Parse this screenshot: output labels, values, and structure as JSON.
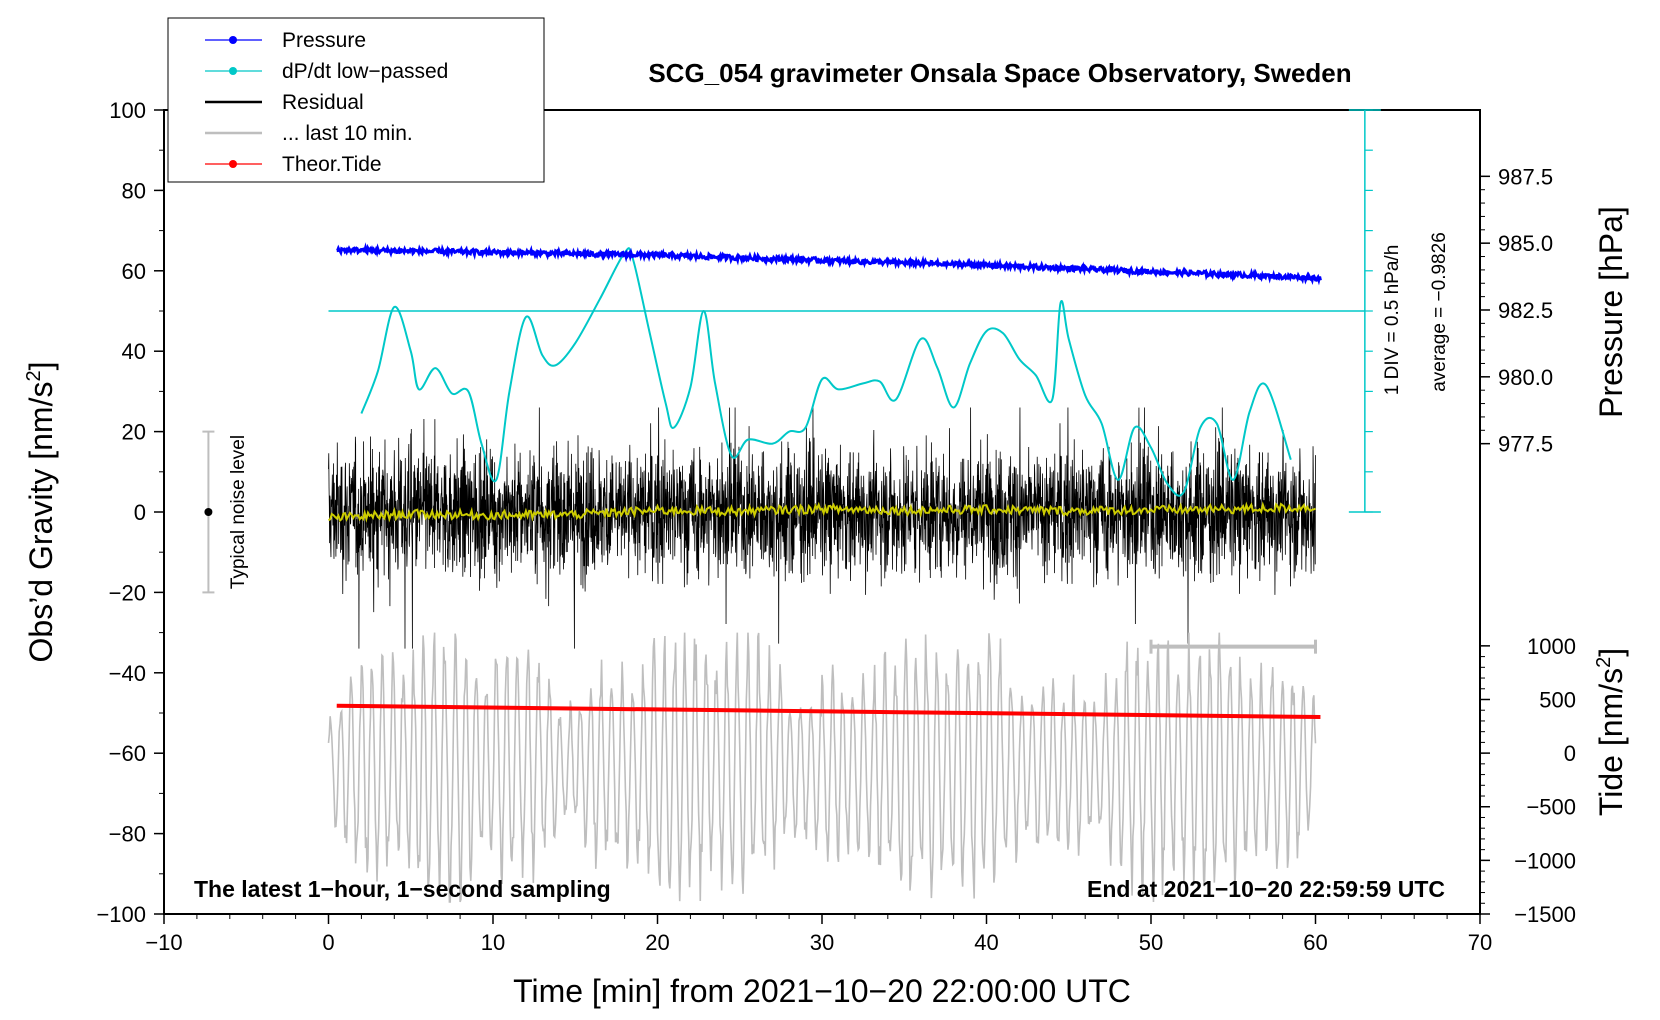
{
  "chart_data": {
    "type": "line",
    "title": "SCG_054 gravimeter Onsala Space Observatory, Sweden",
    "xlabel": "Time [min] from 2021−10−20 22:00:00 UTC",
    "ylabel": "Obs’d Gravity [nm/s²]",
    "ylabel_parts": {
      "base": "Obs’d Gravity [nm/s",
      "sup": "2",
      "end": "]"
    },
    "y2label": "Pressure [hPa]",
    "y3label_parts": {
      "base": "Tide [nm/s",
      "sup": "2",
      "end": "]"
    },
    "xlim": [
      -10,
      70
    ],
    "ylim": [
      -100,
      100
    ],
    "x_ticks": [
      -10,
      0,
      10,
      20,
      30,
      40,
      50,
      60,
      70
    ],
    "x_tick_labels": [
      "−10",
      "0",
      "10",
      "20",
      "30",
      "40",
      "50",
      "60",
      "70"
    ],
    "y_ticks": [
      -100,
      -80,
      -60,
      -40,
      -20,
      0,
      20,
      40,
      60,
      80,
      100
    ],
    "y_tick_labels": [
      "−100",
      "−80",
      "−60",
      "−40",
      "−20",
      "0",
      "20",
      "40",
      "60",
      "80",
      "100"
    ],
    "pressure_ticks": [
      977.5,
      980.0,
      982.5,
      985.0,
      987.5
    ],
    "pressure_tick_labels": [
      "977.5",
      "980.0",
      "982.5",
      "985.0",
      "987.5"
    ],
    "pressure_axis_map": {
      "value_a": 977.5,
      "y_a": 17,
      "value_b": 987.5,
      "y_b": 83.5
    },
    "tide_ticks": [
      -1500,
      -1000,
      -500,
      0,
      500,
      1000
    ],
    "tide_tick_labels": [
      "−1500",
      "−1000",
      "−500",
      "0",
      "500",
      "1000"
    ],
    "tide_axis_map": {
      "value_a": -1500,
      "y_a": -100,
      "value_b": 1000,
      "y_b": -33.3
    },
    "legend": [
      {
        "label": "Pressure",
        "color": "#0000ff",
        "marker": true
      },
      {
        "label": "dP/dt low−passed",
        "color": "#00c8c8",
        "marker": true
      },
      {
        "label": "Residual",
        "color": "#000000",
        "marker": false
      },
      {
        "label": "... last 10 min.",
        "color": "#bebebe",
        "marker": false
      },
      {
        "label": "Theor.Tide",
        "color": "#ff0000",
        "marker": true
      }
    ],
    "series": [
      {
        "name": "Pressure",
        "color": "#0000ff",
        "x": [
          0.5,
          10,
          20,
          30,
          40,
          50,
          60.3
        ],
        "y": [
          65.2,
          64.6,
          63.9,
          62.6,
          61.4,
          59.8,
          58.2
        ]
      },
      {
        "name": "dP/dt low−passed",
        "color": "#00c8c8",
        "x": [
          2,
          3,
          4,
          5,
          5.5,
          6.5,
          7.5,
          8.5,
          9.3,
          10.2,
          11,
          12,
          13,
          13.8,
          15,
          16.5,
          18,
          18.5,
          19.5,
          20.5,
          21,
          22,
          22.8,
          23.5,
          24.5,
          25.5,
          27,
          28,
          29,
          30,
          31,
          32.5,
          33.5,
          34.5,
          36,
          37,
          38,
          39,
          40,
          41,
          42,
          43,
          44,
          44.5,
          45,
          46,
          47,
          48,
          49,
          50,
          51,
          52,
          53,
          54,
          55,
          56,
          57,
          58.5
        ],
        "y": [
          24.5,
          35,
          51,
          40,
          30.5,
          35.8,
          29.5,
          30,
          17,
          8,
          30,
          48.5,
          39,
          36.5,
          42,
          53,
          64.5,
          63,
          45,
          27,
          21,
          31,
          50,
          32,
          14,
          18,
          17,
          20,
          21,
          33,
          30.5,
          32,
          32.5,
          28,
          43,
          36,
          26,
          37,
          45,
          44.5,
          38,
          34,
          28,
          52,
          43,
          29,
          22,
          8,
          21,
          16,
          7,
          5,
          21,
          22,
          8,
          25,
          31.5,
          13
        ]
      },
      {
        "name": "Residual",
        "color": "#000000",
        "amplitude": 27
      },
      {
        "name": "Residual smoothed",
        "color": "#cccc00",
        "x": [
          0,
          5,
          10,
          15,
          20,
          25,
          30,
          35,
          40,
          45,
          50,
          55,
          60
        ],
        "y": [
          -1.5,
          -0.5,
          -0.8,
          -0.6,
          0.4,
          0.2,
          0.8,
          0.4,
          0.6,
          0.3,
          0.5,
          0.7,
          1.2
        ]
      },
      {
        "name": "... last 10 min.",
        "color": "#bebebe",
        "amplitude": 30
      },
      {
        "name": "Theor.Tide",
        "color": "#ff0000",
        "x": [
          0.5,
          60.3
        ],
        "y": [
          -48.2,
          -51
        ]
      }
    ],
    "reference_level": 50,
    "scale_bar_label": "1 DIV = 0.5 hPa/h",
    "average_label": "average = −0.9826",
    "noise_label": "Typical noise level",
    "bottom_left_note": "The latest 1−hour, 1−second sampling",
    "bottom_right_note": "End at 2021−10−20 22:59:59 UTC"
  }
}
